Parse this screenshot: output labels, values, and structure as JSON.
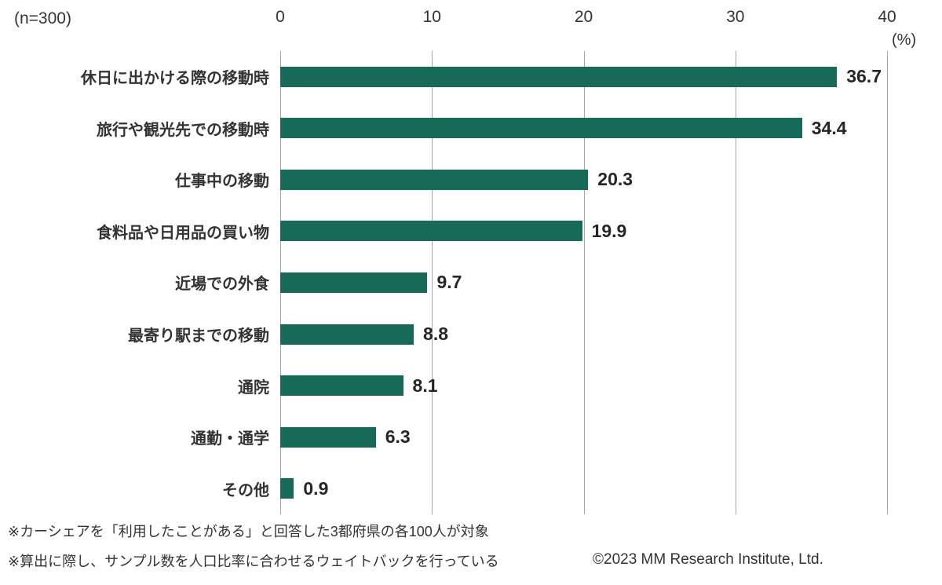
{
  "chart": {
    "sample_label": "(n=300)",
    "percent_label": "(%)",
    "footnotes": [
      "※カーシェアを「利用したことがある」と回答した3都府県の各100人が対象",
      "※算出に際し、サンプル数を人口比率に合わせるウェイトバックを行っている"
    ],
    "copyright": "©2023 MM Research Institute, Ltd."
  },
  "chart_data": {
    "type": "bar",
    "orientation": "horizontal",
    "title": "",
    "xlabel": "(%)",
    "ylabel": "",
    "sample_size": "(n=300)",
    "categories": [
      "休日に出かける際の移動時",
      "旅行や観光先での移動時",
      "仕事中の移動",
      "食料品や日用品の買い物",
      "近場での外食",
      "最寄り駅までの移動",
      "通院",
      "通勤・通学",
      "その他"
    ],
    "values": [
      36.7,
      34.4,
      20.3,
      19.9,
      9.7,
      8.8,
      8.1,
      6.3,
      0.9
    ],
    "xlim": [
      0,
      40
    ],
    "xticks": [
      0,
      10,
      20,
      30,
      40
    ],
    "grid": true,
    "legend": "none",
    "bar_color": "#17695a",
    "gridline_color": "#a6a6a6"
  }
}
